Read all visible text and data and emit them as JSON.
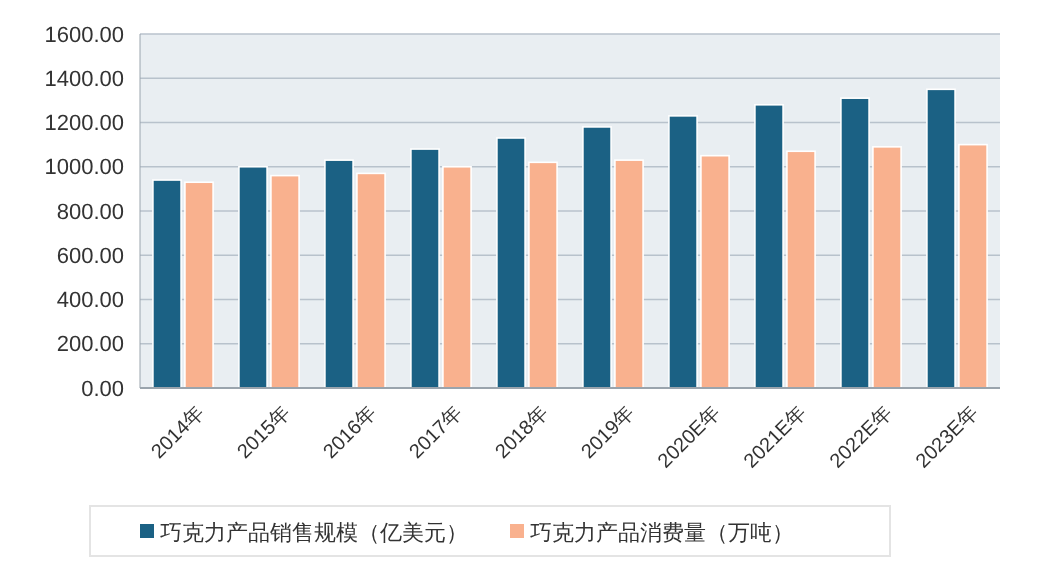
{
  "chart_data": {
    "type": "bar",
    "categories": [
      "2014年",
      "2015年",
      "2016年",
      "2017年",
      "2018年",
      "2019年",
      "2020E年",
      "2021E年",
      "2022E年",
      "2023E年"
    ],
    "series": [
      {
        "name": "巧克力产品销售规模（亿美元）",
        "color": "#1b6184",
        "values": [
          940,
          1000,
          1030,
          1080,
          1130,
          1180,
          1230,
          1280,
          1310,
          1350
        ]
      },
      {
        "name": "巧克力产品消费量（万吨）",
        "color": "#f9b18e",
        "values": [
          930,
          960,
          970,
          1000,
          1020,
          1030,
          1050,
          1070,
          1090,
          1100
        ]
      }
    ],
    "ylim": [
      0,
      1600
    ],
    "yticks": [
      {
        "value": 0,
        "label": "0.00"
      },
      {
        "value": 200,
        "label": "200.00"
      },
      {
        "value": 400,
        "label": "400.00"
      },
      {
        "value": 600,
        "label": "600.00"
      },
      {
        "value": 800,
        "label": "800.00"
      },
      {
        "value": 1000,
        "label": "1000.00"
      },
      {
        "value": 1200,
        "label": "1200.00"
      },
      {
        "value": 1400,
        "label": "1400.00"
      },
      {
        "value": 1600,
        "label": "1600.00"
      }
    ],
    "grid": "y",
    "legend": "bottom"
  }
}
